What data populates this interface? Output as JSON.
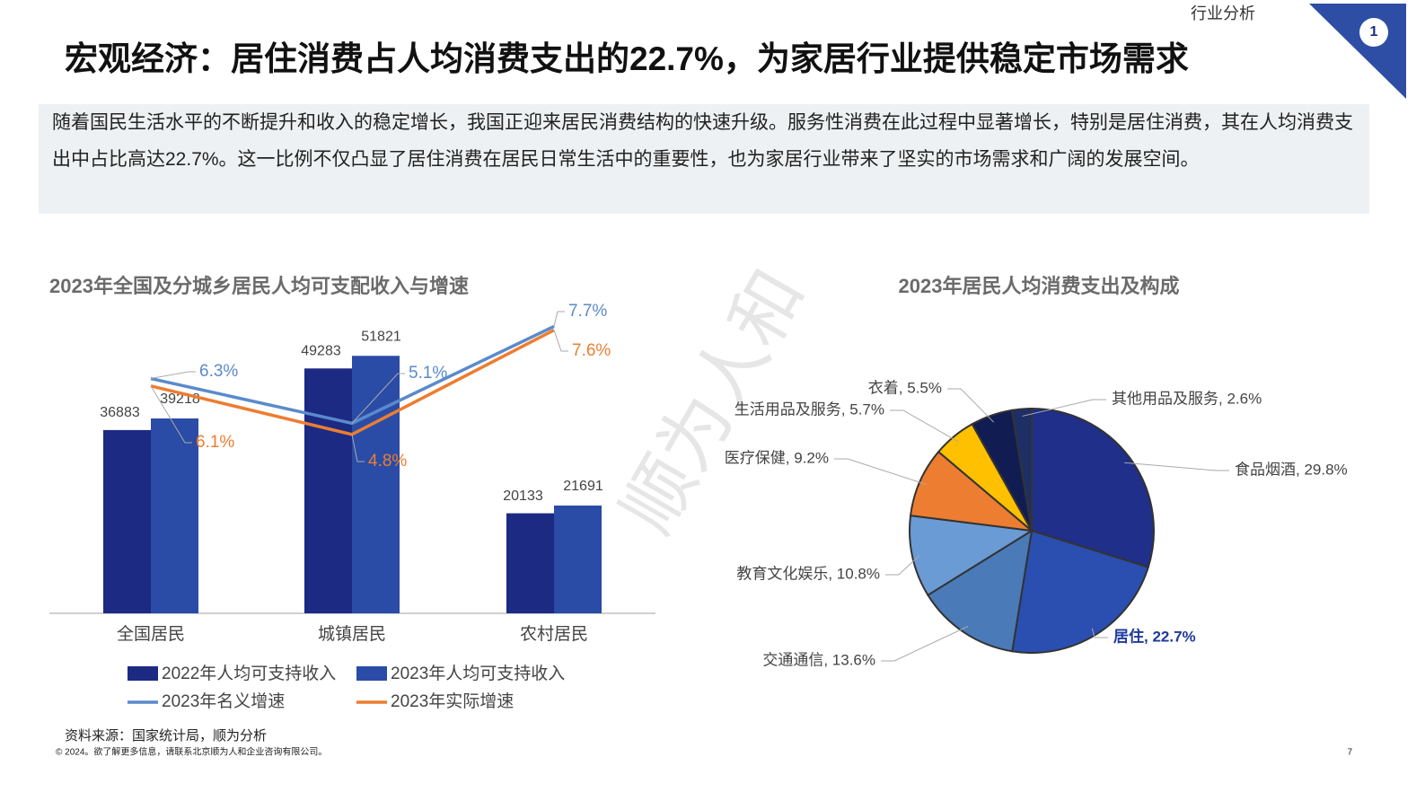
{
  "header": {
    "section": "行业分析",
    "badge": "1",
    "title": "宏观经济：居住消费占人均消费支出的22.7%，为家居行业提供稳定市场需求"
  },
  "summary": "随着国民生活水平的不断提升和收入的稳定增长，我国正迎来居民消费结构的快速升级。服务性消费在此过程中显著增长，特别是居住消费，其在人均消费支出中占比高达22.7%。这一比例不仅凸显了居住消费在居民日常生活中的重要性，也为家居行业带来了坚实的市场需求和广阔的发展空间。",
  "watermark": "顺为人和",
  "chart_data": [
    {
      "type": "bar_line",
      "title": "2023年全国及分城乡居民人均可支配收入与增速",
      "categories": [
        "全国居民",
        "城镇居民",
        "农村居民"
      ],
      "ylim": [
        0,
        60000
      ],
      "y2lim": [
        0,
        8
      ],
      "series": [
        {
          "name": "2022年人均可支持收入",
          "color": "#1c2a84",
          "values": [
            36883,
            49283,
            20133
          ]
        },
        {
          "name": "2023年人均可支持收入",
          "color": "#2a4ca6",
          "values": [
            39218,
            51821,
            21691
          ]
        },
        {
          "name": "2023年名义增速",
          "color": "#5a8acb",
          "axis": "y2",
          "values": [
            6.3,
            5.1,
            7.7
          ],
          "value_labels": [
            "6.3%",
            "5.1%",
            "7.7%"
          ]
        },
        {
          "name": "2023年实际增速",
          "color": "#ed7d31",
          "axis": "y2",
          "values": [
            6.1,
            4.8,
            7.6
          ],
          "value_labels": [
            "6.1%",
            "4.8%",
            "7.6%"
          ]
        }
      ]
    },
    {
      "type": "pie",
      "title": "2023年居民人均消费支出及构成",
      "values": [
        29.8,
        22.7,
        13.6,
        10.8,
        9.2,
        5.7,
        5.5,
        2.6
      ],
      "value_labels": [
        "食品烟酒, 29.8%",
        "居住, 22.7%",
        "交通通信, 13.6%",
        "教育文化娱乐, 10.8%",
        "医疗保健, 9.2%",
        "生活用品及服务, 5.7%",
        "衣着, 5.5%",
        "其他用品及服务, 2.6%"
      ],
      "colors": [
        "#1f2f8a",
        "#2a4fb0",
        "#4a7ab8",
        "#6b9bd4",
        "#ed7d31",
        "#ffc000",
        "#111d52",
        "#1d2f66"
      ]
    }
  ],
  "source": "资料来源：国家统计局，顺为分析",
  "footer": "© 2024。欲了解更多信息，请联系北京顺为人和企业咨询有限公司。",
  "page": "7"
}
